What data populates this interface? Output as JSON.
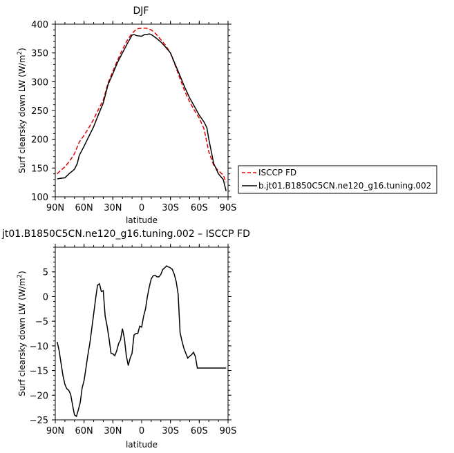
{
  "chart_data": [
    {
      "type": "line",
      "title": "DJF",
      "xlabel": "latitude",
      "ylabel": "Surf clearsky down LW (W/m",
      "ylabel_sup": "2",
      "ylabel_tail": ")",
      "xlim": [
        -90,
        90
      ],
      "ylim": [
        100,
        400
      ],
      "xticks": [
        {
          "value": -90,
          "label": "90N"
        },
        {
          "value": -60,
          "label": "60N"
        },
        {
          "value": -30,
          "label": "30N"
        },
        {
          "value": 0,
          "label": "0"
        },
        {
          "value": 30,
          "label": "30S"
        },
        {
          "value": 60,
          "label": "60S"
        },
        {
          "value": 90,
          "label": "90S"
        }
      ],
      "yticks": [
        100,
        150,
        200,
        250,
        300,
        350,
        400
      ],
      "legend_placement": "right",
      "series": [
        {
          "name": "ISCCP FD",
          "color": "#e00000",
          "dashed": true,
          "x": [
            -88,
            -85,
            -80,
            -75,
            -70,
            -65,
            -60,
            -55,
            -50,
            -45,
            -40,
            -35,
            -30,
            -25,
            -20,
            -15,
            -10,
            -5,
            0,
            5,
            10,
            15,
            20,
            25,
            30,
            35,
            40,
            45,
            50,
            55,
            60,
            65,
            70,
            75,
            80,
            85,
            88
          ],
          "y": [
            140,
            145,
            152,
            162,
            175,
            195,
            207,
            220,
            235,
            252,
            268,
            298,
            318,
            338,
            356,
            372,
            384,
            392,
            393,
            393,
            390,
            383,
            373,
            363,
            350,
            328,
            305,
            283,
            265,
            250,
            237,
            218,
            178,
            155,
            145,
            138,
            125
          ]
        },
        {
          "name": "b.jt01.B1850C5CN.ne120_g16.tuning.002",
          "color": "#000000",
          "dashed": false,
          "x": [
            -88,
            -85,
            -80,
            -75,
            -72,
            -70,
            -67,
            -65,
            -60,
            -55,
            -50,
            -45,
            -40,
            -35,
            -30,
            -25,
            -20,
            -15,
            -10,
            -8,
            -5,
            0,
            3,
            5,
            8,
            10,
            15,
            20,
            25,
            30,
            35,
            40,
            45,
            50,
            55,
            60,
            65,
            68,
            70,
            73,
            75,
            80,
            85,
            88
          ],
          "y": [
            131,
            132,
            133,
            141,
            145,
            148,
            158,
            172,
            188,
            205,
            222,
            243,
            263,
            295,
            314,
            334,
            350,
            366,
            381,
            382,
            380,
            379,
            382,
            382,
            383,
            382,
            376,
            369,
            360,
            350,
            330,
            310,
            290,
            272,
            257,
            242,
            230,
            220,
            200,
            175,
            158,
            140,
            130,
            110
          ]
        }
      ]
    },
    {
      "type": "line",
      "title": "jt01.B1850C5CN.ne120_g16.tuning.002 – ISCCP FD",
      "xlabel": "latitude",
      "ylabel": "Surf clearsky down LW (W/m",
      "ylabel_sup": "2",
      "ylabel_tail": ")",
      "xlim": [
        -90,
        90
      ],
      "ylim": [
        -25,
        10
      ],
      "xticks": [
        {
          "value": -90,
          "label": "90N"
        },
        {
          "value": -60,
          "label": "60N"
        },
        {
          "value": -30,
          "label": "30N"
        },
        {
          "value": 0,
          "label": "0"
        },
        {
          "value": 30,
          "label": "30S"
        },
        {
          "value": 60,
          "label": "60S"
        },
        {
          "value": 90,
          "label": "90S"
        }
      ],
      "yticks": [
        -25,
        -20,
        -15,
        -10,
        -5,
        0,
        5
      ],
      "series": [
        {
          "color": "#000000",
          "dashed": false,
          "x": [
            -88,
            -86,
            -84,
            -82,
            -80,
            -78,
            -76,
            -74,
            -72,
            -70,
            -68,
            -66,
            -64,
            -62,
            -60,
            -58,
            -56,
            -54,
            -52,
            -50,
            -48,
            -46,
            -44,
            -42,
            -40,
            -38,
            -36,
            -34,
            -32,
            -30,
            -28,
            -26,
            -24,
            -22,
            -20,
            -18,
            -16,
            -14,
            -12,
            -10,
            -8,
            -6,
            -4,
            -2,
            0,
            2,
            4,
            6,
            8,
            10,
            12,
            14,
            16,
            18,
            20,
            22,
            24,
            26,
            28,
            30,
            32,
            34,
            36,
            38,
            40,
            42,
            44,
            46,
            48,
            50,
            52,
            54,
            56,
            58,
            60,
            62,
            64,
            66,
            68,
            70,
            72,
            74,
            76,
            78,
            80,
            82,
            84,
            86,
            88
          ],
          "y": [
            -9.2,
            -11,
            -13.5,
            -16,
            -17.8,
            -18.7,
            -19,
            -19.8,
            -22,
            -24,
            -24.3,
            -23,
            -21.5,
            -18.5,
            -17,
            -14.5,
            -11.8,
            -9.5,
            -6.5,
            -3.5,
            -0.5,
            2.3,
            2.6,
            1,
            1.2,
            -4,
            -6,
            -8.5,
            -11.5,
            -11.6,
            -12,
            -11,
            -9.5,
            -8.8,
            -6.5,
            -8.5,
            -12,
            -14,
            -12.5,
            -11.5,
            -7.8,
            -7.5,
            -7.5,
            -6,
            -6.2,
            -4,
            -2.5,
            0,
            2,
            3.6,
            4.2,
            4.3,
            4,
            4,
            4.5,
            5.5,
            5.8,
            6.2,
            6,
            5.8,
            5.5,
            4.5,
            3,
            0.5,
            -7.3,
            -9,
            -10.5,
            -11.5,
            -12.5,
            -12.1,
            -11.8,
            -11.3,
            -12.2,
            -14.5,
            -14.5,
            -14.5,
            -14.5,
            -14.5,
            -14.5,
            -14.5,
            -14.5,
            -14.5,
            -14.5,
            -14.5,
            -14.5,
            -14.5,
            -14.5,
            -14.5,
            -14.5
          ]
        }
      ]
    }
  ]
}
